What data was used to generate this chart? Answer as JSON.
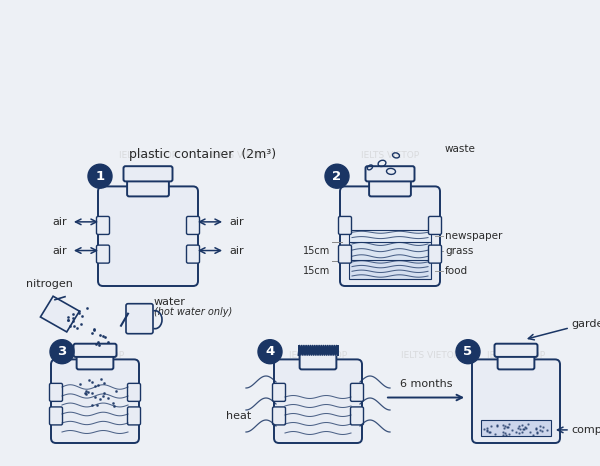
{
  "bg_color": "#edf0f5",
  "bottle_fill": "#e8ecf4",
  "line_color": "#1a3564",
  "text_color": "#2a2a2a",
  "circle_bg": "#1a3564",
  "title": "plastic container  (2m³)",
  "watermark": "IELTS VIETOP",
  "steps": [
    "1",
    "2",
    "3",
    "4",
    "5"
  ],
  "s1_air": "air",
  "s2_waste": "waste",
  "s2_newspaper": "newspaper",
  "s2_grass": "grass",
  "s2_food": "food",
  "s2_dim1": "15cm",
  "s2_dim2": "15cm",
  "s3_nitrogen": "nitrogen",
  "s3_water": "water",
  "s3_water_sub": "(hot water only)",
  "s4_heat": "heat",
  "s5_months": "6 months",
  "s5_garden": "garden",
  "s5_compost": "compost"
}
